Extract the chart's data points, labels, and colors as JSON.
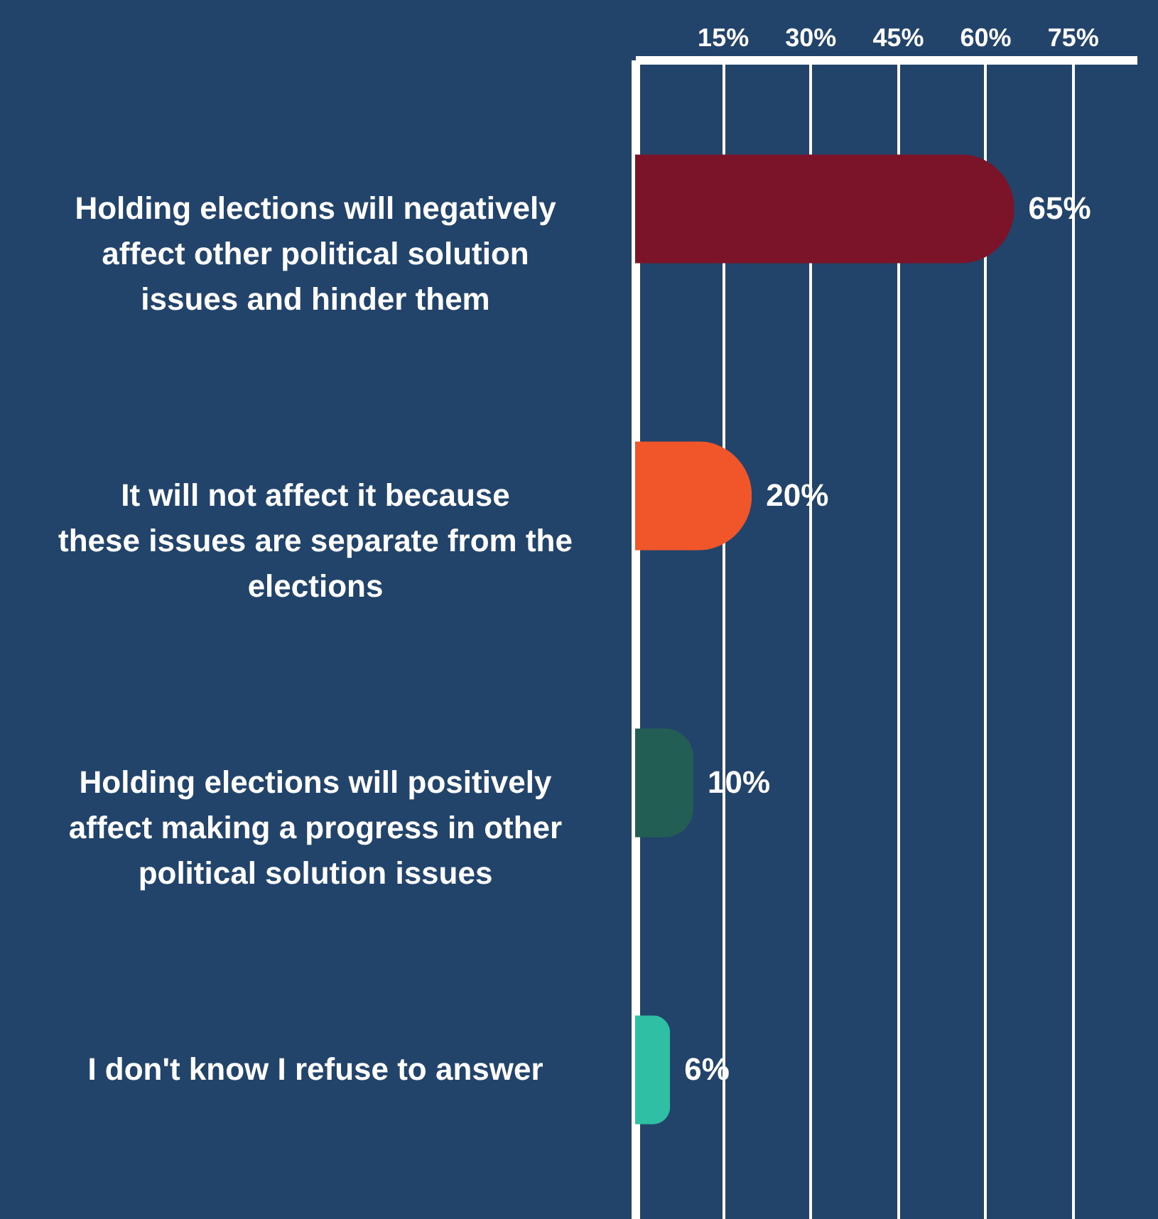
{
  "chart_data": {
    "type": "bar",
    "orientation": "horizontal",
    "categories": [
      "Holding elections will negatively affect other political solution issues and hinder them",
      "It will not affect it because these issues are separate from the elections",
      "Holding elections will positively affect making a progress in other political solution issues",
      "I don't know I refuse to answer"
    ],
    "values": [
      65,
      20,
      10,
      6
    ],
    "colors": [
      "#7b1428",
      "#f0562a",
      "#235e55",
      "#2ebfa5"
    ],
    "xlim": [
      0,
      86
    ],
    "xticks": [
      {
        "value": 15,
        "label": "15%"
      },
      {
        "value": 30,
        "label": "30%"
      },
      {
        "value": 45,
        "label": "45%"
      },
      {
        "value": 60,
        "label": "60%"
      },
      {
        "value": 75,
        "label": "75%"
      }
    ],
    "value_labels": [
      "65%",
      "20%",
      "10%",
      "6%"
    ],
    "grid": "x"
  }
}
